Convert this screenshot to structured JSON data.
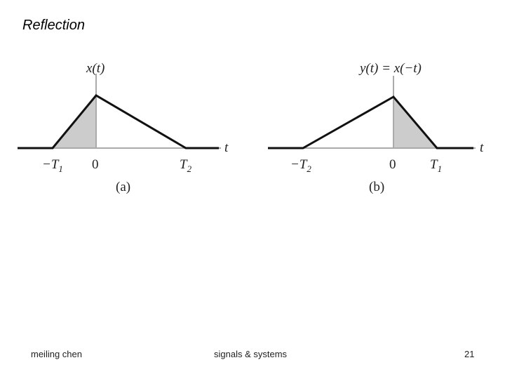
{
  "title": "Reflection",
  "figures": [
    {
      "function_label": "x(t)",
      "axis_label": "t",
      "caption": "(a)",
      "ticks": [
        {
          "label": "−T",
          "sub": "1"
        },
        {
          "label": "0"
        },
        {
          "label": "T",
          "sub": "2"
        }
      ]
    },
    {
      "function_label": "y(t) = x(−t)",
      "axis_label": "t",
      "caption": "(b)",
      "ticks": [
        {
          "label": "−T",
          "sub": "2"
        },
        {
          "label": "0"
        },
        {
          "label": "T",
          "sub": "1"
        }
      ]
    }
  ],
  "footer": {
    "author": "meiling chen",
    "course": "signals & systems",
    "page": "21"
  }
}
